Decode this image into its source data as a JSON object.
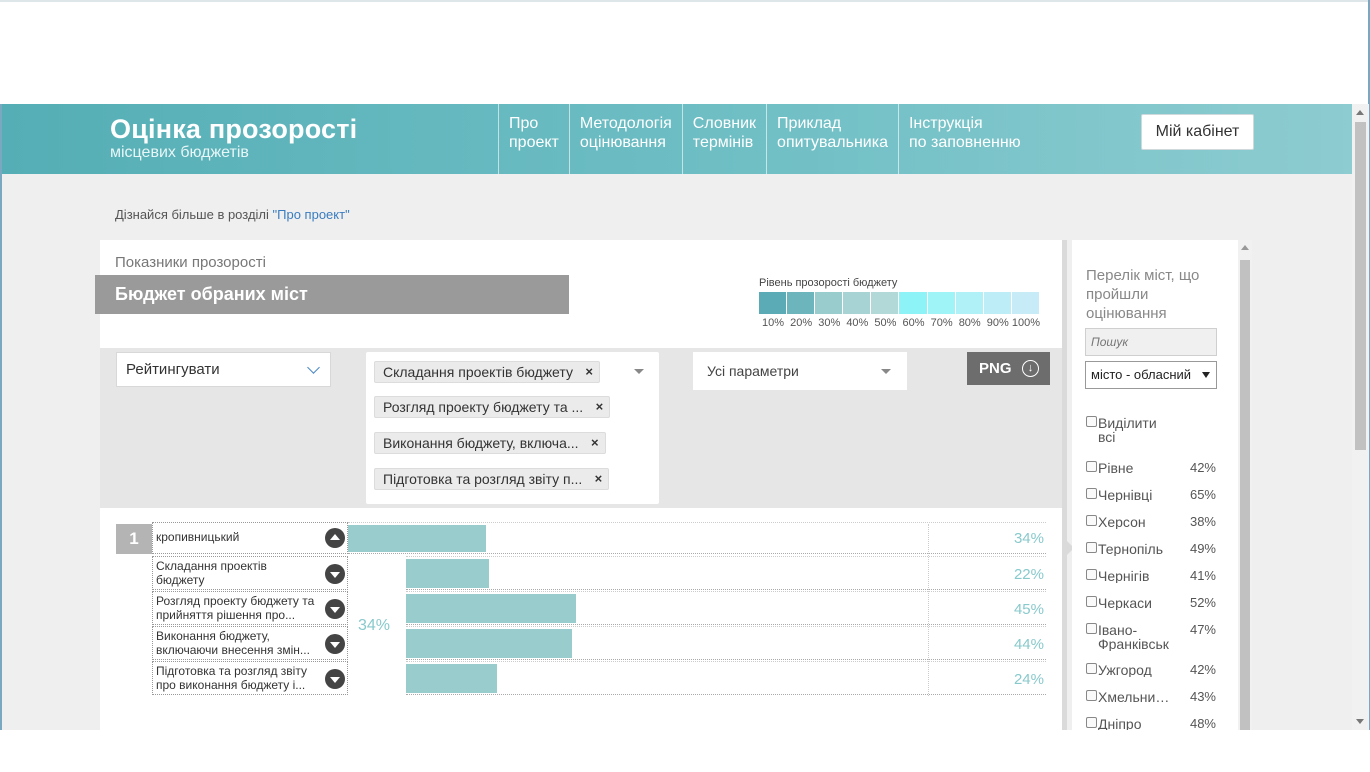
{
  "header": {
    "logo_title": "Оцінка прозорості",
    "logo_subtitle": "місцевих бюджетів",
    "nav": [
      {
        "line1": "Про",
        "line2": "проект"
      },
      {
        "line1": "Методологія",
        "line2": "оцінювання"
      },
      {
        "line1": "Словник",
        "line2": "термінів"
      },
      {
        "line1": "Приклад",
        "line2": "опитувальника"
      },
      {
        "line1": "Інструкція",
        "line2": "по заповненню"
      }
    ],
    "cabinet_button": "Мій кабінет"
  },
  "learn_more": {
    "text": "Дізнайся більше в розділі",
    "link": "\"Про проект\""
  },
  "panel": {
    "caption": "Показники прозорості",
    "title": "Бюджет обраних міст",
    "legend": {
      "title": "Рівень прозорості бюджету",
      "ticks": [
        "10%",
        "20%",
        "30%",
        "40%",
        "50%",
        "60%",
        "70%",
        "80%",
        "90%",
        "100%"
      ],
      "colors": [
        "#5aabb5",
        "#6db5bd",
        "#99cccc",
        "#a8d3d4",
        "#b3d8d8",
        "#8ef3f7",
        "#9ff4f7",
        "#b0f0f7",
        "#bdeef7",
        "#c7ecf8"
      ]
    }
  },
  "filters": {
    "rank_select": "Рейтингувати",
    "tags": [
      "Складання проектів бюджету",
      "Розгляд проекту бюджету та ...",
      "Виконання бюджету, включа...",
      "Підготовка та розгляд звіту п..."
    ],
    "tag_remove": "×",
    "params_select": "Усі параметри",
    "png_button": "PNG",
    "png_icon": "↓"
  },
  "ranking": {
    "rank": "1",
    "city": "кропивницький",
    "city_value": 34,
    "city_value_label": "34%",
    "sub_overall": "34%",
    "sub_rows": [
      {
        "label": "Складання проектів бюджету",
        "value": 22,
        "value_label": "22%"
      },
      {
        "label": "Розгляд проекту бюджету та прийняття рішення про...",
        "value": 45,
        "value_label": "45%"
      },
      {
        "label": "Виконання бюджету, включаючи внесення змін...",
        "value": 44,
        "value_label": "44%"
      },
      {
        "label": "Підготовка та розгляд звіту про виконання бюджету і...",
        "value": 24,
        "value_label": "24%"
      }
    ]
  },
  "sidebar": {
    "title": "Перелік міст, що пройшли оцінювання",
    "search_placeholder": "Пошук",
    "type_select": "місто - обласний",
    "select_all": "Виділити всі",
    "cities": [
      {
        "name": "Рівне",
        "pct": "42%"
      },
      {
        "name": "Чернівці",
        "pct": "65%"
      },
      {
        "name": "Херсон",
        "pct": "38%"
      },
      {
        "name": "Тернопіль",
        "pct": "49%"
      },
      {
        "name": "Чернігів",
        "pct": "41%"
      },
      {
        "name": "Черкаси",
        "pct": "52%"
      },
      {
        "name": "Івано-Франківськ",
        "pct": "47%"
      },
      {
        "name": "Ужгород",
        "pct": "42%"
      },
      {
        "name": "Хмельницький",
        "pct": "43%"
      },
      {
        "name": "Дніпро",
        "pct": "48%"
      }
    ]
  }
}
